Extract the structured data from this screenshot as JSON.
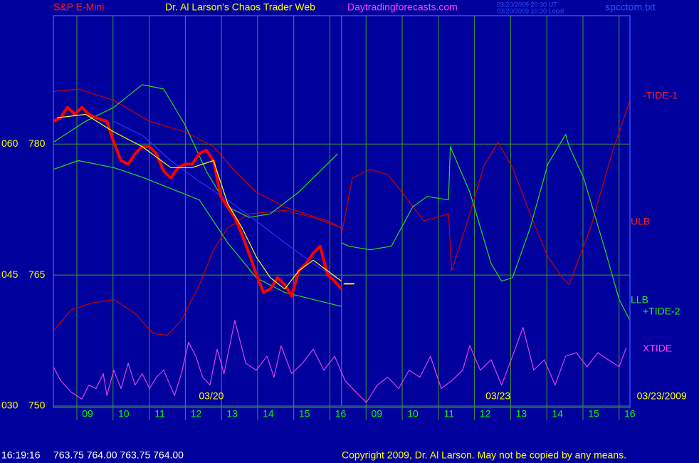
{
  "chart_data": {
    "type": "line",
    "symbol": "S&P E-Mini",
    "title": "Dr. Al Larson's Chaos Trader Web",
    "website": "Daytradingforecasts.com",
    "timestamp_ut": "03/20/2009 20:30 UT",
    "timestamp_local": "03/20/2009 16:30 Local",
    "file": "spcctom.txt",
    "status_time": "16:19:16",
    "status_quote": "763.75 764.00 763.75 764.00",
    "copyright": "Copyright 2009, Dr. Al Larson. May not be copied by any means.",
    "xlim": [
      -0.65,
      15.3
    ],
    "ylim": [
      750,
      794.7
    ],
    "yticks": [
      750,
      765,
      780
    ],
    "yticks_alt": [
      "030",
      "045",
      "060"
    ],
    "xticks": [
      {
        "value": 0,
        "label": "09"
      },
      {
        "value": 1,
        "label": "10"
      },
      {
        "value": 2,
        "label": "11"
      },
      {
        "value": 3,
        "label": "12"
      },
      {
        "value": 4,
        "label": "13"
      },
      {
        "value": 5,
        "label": "14"
      },
      {
        "value": 6,
        "label": "15"
      },
      {
        "value": 7,
        "label": "16"
      },
      {
        "value": 8,
        "label": "09"
      },
      {
        "value": 9,
        "label": "10"
      },
      {
        "value": 10,
        "label": "11"
      },
      {
        "value": 11,
        "label": "12"
      },
      {
        "value": 12,
        "label": "13"
      },
      {
        "value": 13,
        "label": "14"
      },
      {
        "value": 14,
        "label": "15"
      },
      {
        "value": 15,
        "label": "16"
      }
    ],
    "date_labels": [
      {
        "text": "03/20",
        "x": 3.72
      },
      {
        "text": "03/23",
        "x": 11.65
      },
      {
        "text": "03/23/2009",
        "x": 16.18
      }
    ],
    "grid": true,
    "grid_color": "#3c9a2c",
    "now_line_x": 7.32,
    "last_price": 764.0,
    "series": [
      {
        "name": "ULB",
        "color": "#d00000",
        "x": [
          -0.65,
          0.04,
          1.02,
          2.01,
          2.99,
          3.78,
          4.37,
          4.96,
          5.75,
          6.34,
          6.93,
          7.32
        ],
        "values": [
          786.0,
          786.3,
          785.0,
          782.6,
          781.4,
          779.7,
          776.9,
          774.5,
          772.8,
          772.0,
          771.2,
          770.4
        ]
      },
      {
        "color": "#d00000",
        "x": [
          -0.65,
          -0.16,
          0.43,
          1.02,
          1.61,
          2.11,
          2.5,
          2.89,
          3.39,
          3.78,
          4.17,
          4.76,
          5.75,
          6.54,
          7.32
        ],
        "values": [
          758.6,
          761.0,
          761.8,
          762.2,
          760.6,
          758.3,
          758.1,
          759.8,
          763.9,
          767.9,
          770.4,
          772.0,
          772.4,
          771.6,
          770.4
        ]
      },
      {
        "color": "#22dd22",
        "x": [
          -0.65,
          0.24,
          1.02,
          1.81,
          2.4,
          2.99,
          3.58,
          4.17,
          4.76,
          5.35,
          6.14,
          6.73,
          7.22
        ],
        "values": [
          780.2,
          782.6,
          784.2,
          786.8,
          786.3,
          782.2,
          776.9,
          772.8,
          771.6,
          772.0,
          774.5,
          776.9,
          778.9
        ]
      },
      {
        "name": "LLB",
        "color": "#22dd22",
        "x": [
          -0.65,
          0.04,
          1.02,
          1.81,
          2.6,
          3.39,
          4.17,
          4.96,
          5.75,
          6.54,
          7.32
        ],
        "values": [
          777.1,
          778.1,
          777.3,
          776.2,
          774.9,
          773.6,
          768.7,
          764.7,
          763.0,
          762.2,
          761.4
        ]
      },
      {
        "color": "#3030ff",
        "x": [
          1.02,
          1.81,
          2.6,
          3.39,
          4.17,
          4.96,
          5.75,
          6.54,
          7.32
        ],
        "values": [
          782.6,
          781.0,
          778.1,
          775.7,
          773.6,
          771.2,
          768.7,
          766.3,
          764.3
        ]
      },
      {
        "color": "#ff0000",
        "width": 4,
        "x": [
          -0.65,
          -0.45,
          -0.26,
          -0.06,
          0.14,
          0.33,
          0.53,
          0.83,
          1.02,
          1.22,
          1.42,
          1.61,
          1.81,
          2.01,
          2.2,
          2.4,
          2.6,
          2.8,
          2.99,
          3.19,
          3.39,
          3.58,
          3.78,
          3.98,
          4.17,
          4.37,
          4.57,
          4.76,
          4.96,
          5.16,
          5.35,
          5.55,
          5.75,
          5.94,
          6.14,
          6.34,
          6.54,
          6.73,
          6.93,
          7.13,
          7.32
        ],
        "values": [
          782.6,
          783.0,
          784.2,
          783.4,
          784.2,
          783.4,
          783.0,
          782.6,
          780.2,
          778.1,
          777.7,
          778.9,
          779.7,
          779.7,
          778.9,
          776.9,
          776.1,
          777.3,
          777.7,
          777.7,
          778.9,
          779.3,
          778.1,
          774.0,
          772.8,
          771.6,
          769.6,
          767.5,
          765.1,
          763.0,
          763.4,
          764.7,
          763.9,
          762.6,
          765.5,
          766.3,
          767.5,
          768.3,
          765.1,
          764.3,
          763.4
        ]
      },
      {
        "color": "#ffff00",
        "x": [
          -0.55,
          0.24,
          1.02,
          1.81,
          2.6,
          3.19,
          3.78,
          4.17,
          4.57,
          4.96,
          5.35,
          5.75,
          6.14,
          6.54,
          6.93,
          7.32
        ],
        "values": [
          783.0,
          783.4,
          781.4,
          779.7,
          777.3,
          777.3,
          778.1,
          773.2,
          770.4,
          767.1,
          764.7,
          763.4,
          765.5,
          766.7,
          765.5,
          764.3
        ]
      },
      {
        "name": "-TIDE-1",
        "color": "#d00000",
        "x": [
          7.32,
          7.62,
          8.11,
          8.6,
          9.09,
          9.59,
          10.28,
          10.37,
          10.87,
          11.26,
          11.65,
          12.05,
          12.54,
          13.03,
          13.43,
          13.62,
          14.21,
          14.8,
          15.3
        ],
        "values": [
          769.6,
          776.1,
          777.1,
          776.5,
          774.0,
          771.2,
          772.0,
          765.5,
          772.0,
          777.5,
          780.2,
          777.3,
          772.0,
          767.1,
          764.7,
          763.9,
          770.4,
          778.9,
          785.0
        ]
      },
      {
        "name": "+TIDE-2",
        "color": "#22dd22",
        "x": [
          7.32,
          7.52,
          8.11,
          8.7,
          9.29,
          9.69,
          10.28,
          10.33,
          10.87,
          11.46,
          11.75,
          12.05,
          12.54,
          13.03,
          13.52,
          13.62,
          14.02,
          14.61,
          15.0,
          15.3
        ],
        "values": [
          768.7,
          768.3,
          767.9,
          768.3,
          772.8,
          774.0,
          773.6,
          779.7,
          774.5,
          766.3,
          764.3,
          764.7,
          770.4,
          777.7,
          781.1,
          779.7,
          776.1,
          767.9,
          762.2,
          759.8
        ]
      },
      {
        "name": "XTIDE",
        "color": "#e040e0",
        "x": [
          -0.65,
          -0.45,
          -0.16,
          0.14,
          0.33,
          0.53,
          0.73,
          0.83,
          1.02,
          1.22,
          1.42,
          1.61,
          1.81,
          2.01,
          2.2,
          2.4,
          2.7,
          2.89,
          3.09,
          3.29,
          3.48,
          3.68,
          3.88,
          4.07,
          4.37,
          4.67,
          4.96,
          5.26,
          5.45,
          5.65,
          5.94,
          6.24,
          6.54,
          6.83,
          7.13,
          7.42,
          7.72,
          8.01,
          8.31,
          8.6,
          8.9,
          9.19,
          9.49,
          9.78,
          10.08,
          10.37,
          10.67,
          10.87,
          11.16,
          11.46,
          11.75,
          12.05,
          12.34,
          12.64,
          12.93,
          13.23,
          13.52,
          13.82,
          14.11,
          14.41,
          14.7,
          15.0,
          15.2
        ],
        "values": [
          754.5,
          752.9,
          751.6,
          750.8,
          752.4,
          752.0,
          753.7,
          751.2,
          754.1,
          752.0,
          754.9,
          752.4,
          753.7,
          752.0,
          753.3,
          754.1,
          751.2,
          753.7,
          757.3,
          755.7,
          753.3,
          752.4,
          756.5,
          753.7,
          759.8,
          754.9,
          754.1,
          755.7,
          753.3,
          756.9,
          753.7,
          754.9,
          756.5,
          754.1,
          755.7,
          752.9,
          751.6,
          750.4,
          752.4,
          753.3,
          752.0,
          754.1,
          753.3,
          755.7,
          752.0,
          752.9,
          754.1,
          756.9,
          754.1,
          755.3,
          752.4,
          755.7,
          759.0,
          754.1,
          755.3,
          752.4,
          755.7,
          756.1,
          754.5,
          756.1,
          755.3,
          754.5,
          756.7
        ]
      }
    ]
  }
}
